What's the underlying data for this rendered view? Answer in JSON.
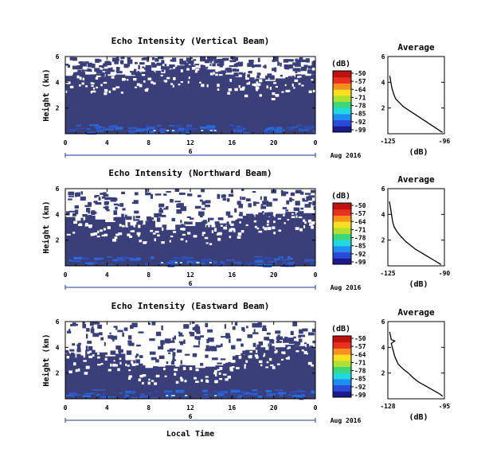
{
  "figure": {
    "xlabel": "Local Time",
    "date_label": "Aug 2016",
    "colorbar_unit": "(dB)",
    "colorbar_ticks": [
      "-50",
      "-57",
      "-64",
      "-71",
      "-78",
      "-85",
      "-92",
      "-99"
    ],
    "colormap": [
      "#1a1a8c",
      "#2a4ad8",
      "#1e8cf0",
      "#20d8e0",
      "#3ad878",
      "#b0e030",
      "#f8e020",
      "#f8901e",
      "#e83020",
      "#c01010"
    ],
    "background_color": "#3a3f7a",
    "missing_color": "#ffffff"
  },
  "chart_data": [
    {
      "type": "heatmap",
      "title": "Echo Intensity (Vertical Beam)",
      "ylabel": "Height (km)",
      "xlim": [
        0,
        24
      ],
      "xticks": [
        "0",
        "4",
        "8",
        "12",
        "16",
        "20",
        "0"
      ],
      "xsub_label": "6",
      "ylim": [
        0,
        6
      ],
      "yticks": [
        "2",
        "4",
        "6"
      ],
      "clim": [
        -99,
        -50
      ],
      "missing_above_km": [
        4.5,
        4.8,
        4.6,
        4.4,
        4.5,
        4.6,
        4.5,
        4.7,
        4.8,
        4.7,
        5.0,
        5.2,
        5.3,
        5.1,
        5.0,
        4.8,
        4.6,
        4.4,
        4.2,
        4.3,
        4.1,
        4.3,
        4.4,
        4.6,
        4.5
      ],
      "profile": {
        "title": "Average",
        "xlabel": "(dB)",
        "xlim": [
          -125,
          -96
        ],
        "xticks": [
          "-125",
          "-96"
        ],
        "ylim": [
          0,
          6
        ],
        "yticks": [
          "2",
          "4",
          "6"
        ],
        "x": [
          -124,
          -123,
          -122,
          -121,
          -119,
          -117,
          -114,
          -111,
          -108,
          -105,
          -102,
          -99,
          -97
        ],
        "y": [
          4.5,
          3.6,
          3.1,
          2.7,
          2.4,
          2.1,
          1.8,
          1.5,
          1.2,
          0.9,
          0.6,
          0.3,
          0.1
        ]
      }
    },
    {
      "type": "heatmap",
      "title": "Echo Intensity (Northward Beam)",
      "ylabel": "Height (km)",
      "xlim": [
        0,
        24
      ],
      "xticks": [
        "0",
        "4",
        "8",
        "12",
        "16",
        "20",
        "0"
      ],
      "xsub_label": "6",
      "ylim": [
        0,
        6
      ],
      "yticks": [
        "2",
        "4",
        "6"
      ],
      "clim": [
        -99,
        -50
      ],
      "missing_above_km": [
        3.8,
        3.5,
        3.9,
        3.6,
        3.4,
        3.8,
        3.0,
        3.2,
        3.5,
        3.0,
        2.8,
        3.2,
        3.1,
        3.4,
        3.0,
        3.3,
        3.1,
        3.6,
        3.8,
        4.0,
        3.8,
        4.0,
        4.2,
        4.0,
        4.1
      ],
      "profile": {
        "title": "Average",
        "xlabel": "(dB)",
        "xlim": [
          -125,
          -90
        ],
        "xticks": [
          "-125",
          "-90"
        ],
        "ylim": [
          0,
          6
        ],
        "yticks": [
          "2",
          "4",
          "6"
        ],
        "x": [
          -124,
          -123,
          -122,
          -121,
          -119,
          -117,
          -114,
          -111,
          -108,
          -104,
          -100,
          -96,
          -92
        ],
        "y": [
          5.0,
          4.2,
          3.4,
          3.0,
          2.6,
          2.3,
          1.9,
          1.6,
          1.3,
          1.0,
          0.7,
          0.4,
          0.1
        ]
      }
    },
    {
      "type": "heatmap",
      "title": "Echo Intensity (Eastward Beam)",
      "ylabel": "Height (km)",
      "xlim": [
        0,
        24
      ],
      "xticks": [
        "0",
        "4",
        "8",
        "12",
        "16",
        "20",
        "0"
      ],
      "xsub_label": "6",
      "ylim": [
        0,
        6
      ],
      "yticks": [
        "2",
        "4",
        "6"
      ],
      "clim": [
        -99,
        -50
      ],
      "missing_above_km": [
        3.5,
        3.2,
        3.8,
        3.6,
        3.3,
        3.5,
        3.0,
        2.6,
        2.4,
        2.5,
        2.6,
        2.5,
        2.6,
        2.4,
        2.5,
        2.6,
        2.8,
        3.4,
        3.8,
        4.0,
        3.8,
        4.0,
        4.2,
        4.1,
        4.0
      ],
      "profile": {
        "title": "Average",
        "xlabel": "(dB)",
        "xlim": [
          -128,
          -95
        ],
        "xticks": [
          "-128",
          "-95"
        ],
        "ylim": [
          0,
          6
        ],
        "yticks": [
          "2",
          "4",
          "6"
        ],
        "x": [
          -127,
          -126,
          -124,
          -126,
          -124,
          -122,
          -119,
          -116,
          -113,
          -110,
          -106,
          -102,
          -98,
          -96
        ],
        "y": [
          5.2,
          4.6,
          4.5,
          4.3,
          3.3,
          2.7,
          2.3,
          2.0,
          1.6,
          1.3,
          1.0,
          0.7,
          0.4,
          0.2
        ]
      }
    }
  ]
}
